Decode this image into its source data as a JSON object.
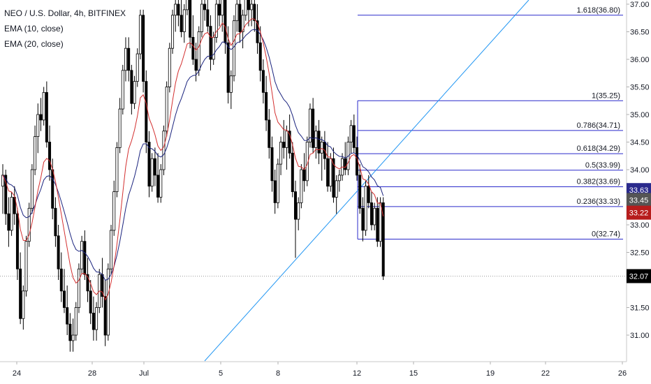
{
  "legend": {
    "symbol": "NEO / U.S. Dollar, 4h, BITFINEX",
    "ema1": "EMA (10, close)",
    "ema2": "EMA (20, close)"
  },
  "colors": {
    "bull": "#ffffff",
    "bear": "#000000",
    "ema10": "#d32f2f",
    "ema20": "#1a237e",
    "fib": "#2a2acb",
    "trend": "#2196f3",
    "badge_ema20": "#2a2a8c",
    "badge_close": "#555555",
    "badge_ema10": "#b71c1c",
    "badge_last": "#000000"
  },
  "chart_data": {
    "type": "candlestick",
    "title": "NEO / U.S. Dollar, 4h, BITFINEX",
    "xlabel": "",
    "ylabel": "",
    "ylim": [
      30.65,
      37.15
    ],
    "y_ticks": [
      "37.00",
      "36.50",
      "36.00",
      "35.50",
      "35.00",
      "34.50",
      "34.00",
      "33.50",
      "33.00",
      "32.50",
      "31.50",
      "31.00"
    ],
    "x_tick_labels": [
      "24",
      "28",
      "Jul",
      "5",
      "8",
      "12",
      "15",
      "19",
      "22",
      "26"
    ],
    "grid": false,
    "fibonacci": [
      {
        "label": "1.618(36.80)",
        "value": 36.8
      },
      {
        "label": "1(35.25)",
        "value": 35.25
      },
      {
        "label": "0.786(34.71)",
        "value": 34.71
      },
      {
        "label": "0.618(34.29)",
        "value": 34.29
      },
      {
        "label": "0.5(33.99)",
        "value": 33.99
      },
      {
        "label": "0.382(33.69)",
        "value": 33.69
      },
      {
        "label": "0.236(33.33)",
        "value": 33.33
      },
      {
        "label": "0(32.74)",
        "value": 32.74
      }
    ],
    "price_badges": [
      {
        "label": "33.63",
        "value": 33.63,
        "role": "ema20"
      },
      {
        "label": "33.45",
        "value": 33.45,
        "role": "close"
      },
      {
        "label": "33.22",
        "value": 33.22,
        "role": "ema10"
      },
      {
        "label": "32.07",
        "value": 32.07,
        "role": "last"
      }
    ],
    "last_price": 32.07,
    "candles_ohlc": [
      [
        33.7,
        34.1,
        33.2,
        33.9
      ],
      [
        33.9,
        34.0,
        33.0,
        33.2
      ],
      [
        33.2,
        33.5,
        32.6,
        32.9
      ],
      [
        32.9,
        33.6,
        32.8,
        33.5
      ],
      [
        33.5,
        33.7,
        33.0,
        33.2
      ],
      [
        33.2,
        33.3,
        32.0,
        32.2
      ],
      [
        32.2,
        32.5,
        31.2,
        31.3
      ],
      [
        31.3,
        31.9,
        31.1,
        31.8
      ],
      [
        31.8,
        32.8,
        31.7,
        32.7
      ],
      [
        32.7,
        33.4,
        32.6,
        33.3
      ],
      [
        33.3,
        34.1,
        33.2,
        34.0
      ],
      [
        34.0,
        34.8,
        33.9,
        34.6
      ],
      [
        34.6,
        35.2,
        34.3,
        35.0
      ],
      [
        35.0,
        35.3,
        34.7,
        34.9
      ],
      [
        34.9,
        35.5,
        34.8,
        35.4
      ],
      [
        35.4,
        35.6,
        34.4,
        34.5
      ],
      [
        34.5,
        34.8,
        33.8,
        34.0
      ],
      [
        34.0,
        34.2,
        33.1,
        33.3
      ],
      [
        33.3,
        33.5,
        32.6,
        32.8
      ],
      [
        32.8,
        33.0,
        32.0,
        32.2
      ],
      [
        32.2,
        32.5,
        31.6,
        31.8
      ],
      [
        31.8,
        32.2,
        31.4,
        31.5
      ],
      [
        31.5,
        31.9,
        31.0,
        31.2
      ],
      [
        31.2,
        31.4,
        30.7,
        30.9
      ],
      [
        30.9,
        31.3,
        30.7,
        31.0
      ],
      [
        31.0,
        31.6,
        30.9,
        31.5
      ],
      [
        31.5,
        32.3,
        31.4,
        32.2
      ],
      [
        32.2,
        32.8,
        32.1,
        32.7
      ],
      [
        32.7,
        32.9,
        32.0,
        32.1
      ],
      [
        32.1,
        32.4,
        31.6,
        31.8
      ],
      [
        31.8,
        32.0,
        31.2,
        31.4
      ],
      [
        31.4,
        31.7,
        30.9,
        31.1
      ],
      [
        31.1,
        31.6,
        30.9,
        31.5
      ],
      [
        31.5,
        32.2,
        31.4,
        32.1
      ],
      [
        32.1,
        32.4,
        31.5,
        31.7
      ],
      [
        31.7,
        32.0,
        30.8,
        31.0
      ],
      [
        31.0,
        32.3,
        30.9,
        32.2
      ],
      [
        32.2,
        33.0,
        32.1,
        32.9
      ],
      [
        32.9,
        33.8,
        32.8,
        33.6
      ],
      [
        33.6,
        34.5,
        33.5,
        34.4
      ],
      [
        34.4,
        35.3,
        34.3,
        35.1
      ],
      [
        35.1,
        35.9,
        35.0,
        35.8
      ],
      [
        35.8,
        36.4,
        35.6,
        36.2
      ],
      [
        36.2,
        36.4,
        35.6,
        35.8
      ],
      [
        35.8,
        35.9,
        35.0,
        35.2
      ],
      [
        35.2,
        35.7,
        35.1,
        35.6
      ],
      [
        35.6,
        36.2,
        35.5,
        36.1
      ],
      [
        36.1,
        36.9,
        36.0,
        36.8
      ],
      [
        36.8,
        36.9,
        35.4,
        35.6
      ],
      [
        35.6,
        35.8,
        34.3,
        34.5
      ],
      [
        34.5,
        34.7,
        33.5,
        33.7
      ],
      [
        33.7,
        34.3,
        33.6,
        34.2
      ],
      [
        34.2,
        34.4,
        33.7,
        33.9
      ],
      [
        33.9,
        34.3,
        33.4,
        33.5
      ],
      [
        33.5,
        34.1,
        33.4,
        34.0
      ],
      [
        34.0,
        34.8,
        33.9,
        34.7
      ],
      [
        34.7,
        35.6,
        34.6,
        35.5
      ],
      [
        35.5,
        36.3,
        35.4,
        36.2
      ],
      [
        36.2,
        36.9,
        36.1,
        36.8
      ],
      [
        36.8,
        37.2,
        36.5,
        37.0
      ],
      [
        37.0,
        37.2,
        36.6,
        36.8
      ],
      [
        36.8,
        37.1,
        36.4,
        36.5
      ],
      [
        36.5,
        37.0,
        36.3,
        36.9
      ],
      [
        36.9,
        37.2,
        36.8,
        37.1
      ],
      [
        37.1,
        37.2,
        36.2,
        36.4
      ],
      [
        36.4,
        36.8,
        35.9,
        36.0
      ],
      [
        36.0,
        36.3,
        35.6,
        35.8
      ],
      [
        35.8,
        36.6,
        35.7,
        36.5
      ],
      [
        36.5,
        37.1,
        36.4,
        37.0
      ],
      [
        37.0,
        37.2,
        36.7,
        36.9
      ],
      [
        36.9,
        37.1,
        36.5,
        36.6
      ],
      [
        36.6,
        36.8,
        35.8,
        36.0
      ],
      [
        36.0,
        36.5,
        35.9,
        36.4
      ],
      [
        36.4,
        37.1,
        36.3,
        37.0
      ],
      [
        37.0,
        37.2,
        36.6,
        36.8
      ],
      [
        36.8,
        37.2,
        36.5,
        37.1
      ],
      [
        37.1,
        37.2,
        36.1,
        36.3
      ],
      [
        36.3,
        36.6,
        35.2,
        35.4
      ],
      [
        35.4,
        35.8,
        35.1,
        35.7
      ],
      [
        35.7,
        36.8,
        35.6,
        36.7
      ],
      [
        36.7,
        37.2,
        36.5,
        37.0
      ],
      [
        37.0,
        37.1,
        36.3,
        36.5
      ],
      [
        36.5,
        36.9,
        36.2,
        36.8
      ],
      [
        36.8,
        37.2,
        36.7,
        37.1
      ],
      [
        37.1,
        37.2,
        36.6,
        36.9
      ],
      [
        36.9,
        37.1,
        36.6,
        37.0
      ],
      [
        37.0,
        37.2,
        36.5,
        36.7
      ],
      [
        36.7,
        37.0,
        36.1,
        36.3
      ],
      [
        36.3,
        36.6,
        35.6,
        35.8
      ],
      [
        35.8,
        36.0,
        35.2,
        35.4
      ],
      [
        35.4,
        35.7,
        34.7,
        34.9
      ],
      [
        34.9,
        35.1,
        34.2,
        34.4
      ],
      [
        34.4,
        34.6,
        33.6,
        33.8
      ],
      [
        33.8,
        34.0,
        33.2,
        33.4
      ],
      [
        33.4,
        34.2,
        33.3,
        34.1
      ],
      [
        34.1,
        34.6,
        33.9,
        34.5
      ],
      [
        34.5,
        34.9,
        34.2,
        34.4
      ],
      [
        34.4,
        34.8,
        34.0,
        34.7
      ],
      [
        34.7,
        35.0,
        34.2,
        34.3
      ],
      [
        34.3,
        34.5,
        33.5,
        33.6
      ],
      [
        33.6,
        33.8,
        32.4,
        33.1
      ],
      [
        33.1,
        33.5,
        32.9,
        33.4
      ],
      [
        33.4,
        34.1,
        33.3,
        34.0
      ],
      [
        34.0,
        34.3,
        33.6,
        33.8
      ],
      [
        33.8,
        34.6,
        33.7,
        34.5
      ],
      [
        34.5,
        35.2,
        34.4,
        35.1
      ],
      [
        35.1,
        35.3,
        34.3,
        34.4
      ],
      [
        34.4,
        34.8,
        34.2,
        34.7
      ],
      [
        34.7,
        34.9,
        34.1,
        34.3
      ],
      [
        34.3,
        34.6,
        33.8,
        34.5
      ],
      [
        34.5,
        34.7,
        34.0,
        34.2
      ],
      [
        34.2,
        34.5,
        33.6,
        33.7
      ],
      [
        33.7,
        34.3,
        33.6,
        34.2
      ],
      [
        34.2,
        34.4,
        33.4,
        33.5
      ],
      [
        33.5,
        33.9,
        33.2,
        33.8
      ],
      [
        33.8,
        34.0,
        33.6,
        33.9
      ],
      [
        33.9,
        34.3,
        33.8,
        34.2
      ],
      [
        34.2,
        34.5,
        33.9,
        34.0
      ],
      [
        34.0,
        34.6,
        33.9,
        34.5
      ],
      [
        34.5,
        34.9,
        34.3,
        34.8
      ],
      [
        34.8,
        35.0,
        34.3,
        34.4
      ],
      [
        34.4,
        34.6,
        33.8,
        33.9
      ],
      [
        33.9,
        34.1,
        33.2,
        33.3
      ],
      [
        33.3,
        33.5,
        32.7,
        32.9
      ],
      [
        32.9,
        33.8,
        32.8,
        33.7
      ],
      [
        33.7,
        33.9,
        33.3,
        33.4
      ],
      [
        33.4,
        33.6,
        32.9,
        33.0
      ],
      [
        33.0,
        33.4,
        32.9,
        33.3
      ],
      [
        33.3,
        33.5,
        32.6,
        32.7
      ],
      [
        32.7,
        33.5,
        32.6,
        33.4
      ],
      [
        33.4,
        33.5,
        32.0,
        32.07
      ]
    ]
  }
}
